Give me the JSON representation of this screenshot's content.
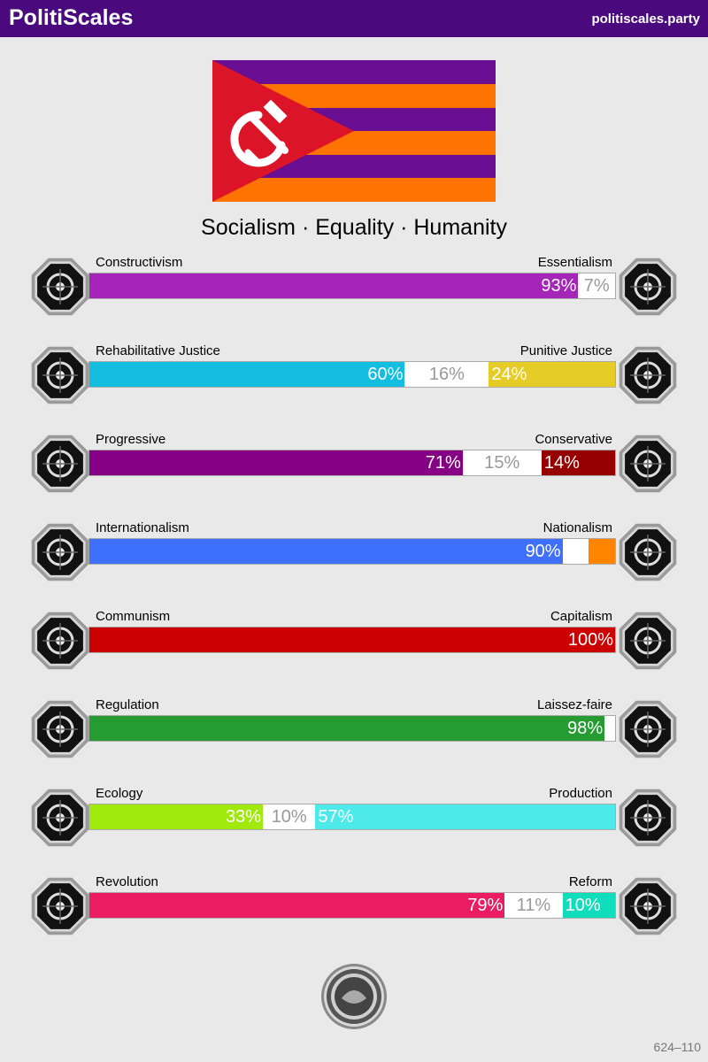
{
  "header": {
    "brand": "PolitiScales",
    "site": "politiscales.party"
  },
  "flag": {
    "stripe_colors": [
      "#6a0f94",
      "#ff7302",
      "#6a0f94",
      "#ff7302",
      "#6a0f94",
      "#ff7302"
    ],
    "triangle_color": "#dc1427",
    "symbol": "hammer-and-sickle",
    "symbol_color": "#ffffff"
  },
  "motto": "Socialism · Equality · Humanity",
  "axes": [
    {
      "left": "Constructivism",
      "right": "Essentialism",
      "left_icon": "eye-grid-icon",
      "right_icon": "flower-icon",
      "left_pct": 93,
      "mid_pct": 7,
      "right_pct": 0,
      "left_text": "93%",
      "mid_text": "7%",
      "right_text": "",
      "left_color": "#a425b7",
      "right_color": "#3c8c3c"
    },
    {
      "left": "Rehabilitative Justice",
      "right": "Punitive Justice",
      "left_icon": "handshake-icon",
      "right_icon": "prison-bars-icon",
      "left_pct": 60,
      "mid_pct": 16,
      "right_pct": 24,
      "left_text": "60%",
      "mid_text": "16%",
      "right_text": "24%",
      "left_color": "#14bee1",
      "right_color": "#e6cc27"
    },
    {
      "left": "Progressive",
      "right": "Conservative",
      "left_icon": "comet-icon",
      "right_icon": "quill-icon",
      "left_pct": 71,
      "mid_pct": 15,
      "right_pct": 14,
      "left_text": "71%",
      "mid_text": "15%",
      "right_text": "14%",
      "left_color": "#850083",
      "right_color": "#970000"
    },
    {
      "left": "Internationalism",
      "right": "Nationalism",
      "left_icon": "globe-icon",
      "right_icon": "flag-icon",
      "left_pct": 90,
      "mid_pct": 5,
      "right_pct": 5,
      "left_text": "90%",
      "mid_text": "",
      "right_text": "",
      "left_color": "#3e6ffd",
      "right_color": "#ff8500"
    },
    {
      "left": "Communism",
      "right": "Capitalism",
      "left_icon": "hammer-sickle-icon",
      "right_icon": "money-bag-icon",
      "left_pct": 100,
      "mid_pct": 0,
      "right_pct": 0,
      "left_text": "100%",
      "mid_text": "",
      "right_text": "",
      "left_color": "#cc0000",
      "right_color": "#ffb800"
    },
    {
      "left": "Regulation",
      "right": "Laissez-faire",
      "left_icon": "ruler-icon",
      "right_icon": "butterfly-icon",
      "left_pct": 98,
      "mid_pct": 2,
      "right_pct": 0,
      "left_text": "98%",
      "mid_text": "",
      "right_text": "",
      "left_color": "#269b32",
      "right_color": "#6608c0"
    },
    {
      "left": "Ecology",
      "right": "Production",
      "left_icon": "sprout-icon",
      "right_icon": "gear-icon",
      "left_pct": 33,
      "mid_pct": 10,
      "right_pct": 57,
      "left_text": "33%",
      "mid_text": "10%",
      "right_text": "57%",
      "left_color": "#a0e90d",
      "right_color": "#4deae9"
    },
    {
      "left": "Revolution",
      "right": "Reform",
      "left_icon": "fist-icon",
      "right_icon": "dome-icon",
      "left_pct": 79,
      "mid_pct": 11,
      "right_pct": 10,
      "left_text": "79%",
      "mid_text": "11%",
      "right_text": "10%",
      "left_color": "#ea1d63",
      "right_color": "#0fddbb"
    }
  ],
  "seal_icon": "seal-icon",
  "footer": "624–110"
}
